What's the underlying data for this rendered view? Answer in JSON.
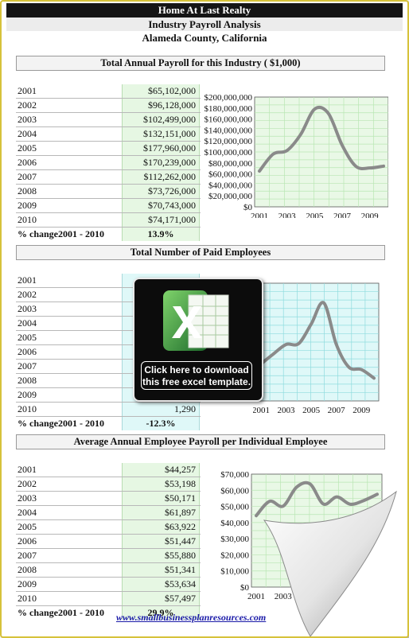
{
  "header": {
    "company": "Home At Last Realty",
    "report": "Industry Payroll Analysis",
    "location": "Alameda County, California"
  },
  "sections": [
    {
      "title": "Total Annual Payroll for this Industry ( $1,000)",
      "rows": [
        {
          "year": "2001",
          "value": "$65,102,000"
        },
        {
          "year": "2002",
          "value": "$96,128,000"
        },
        {
          "year": "2003",
          "value": "$102,499,000"
        },
        {
          "year": "2004",
          "value": "$132,151,000"
        },
        {
          "year": "2005",
          "value": "$177,960,000"
        },
        {
          "year": "2006",
          "value": "$170,239,000"
        },
        {
          "year": "2007",
          "value": "$112,262,000"
        },
        {
          "year": "2008",
          "value": "$73,726,000"
        },
        {
          "year": "2009",
          "value": "$70,743,000"
        },
        {
          "year": "2010",
          "value": "$74,171,000"
        }
      ],
      "pct_label": "% change2001 - 2010",
      "pct_value": "13.9%"
    },
    {
      "title": "Total Number of Paid Employees",
      "rows": [
        {
          "year": "2001",
          "value": ""
        },
        {
          "year": "2002",
          "value": ""
        },
        {
          "year": "2003",
          "value": ""
        },
        {
          "year": "2004",
          "value": ""
        },
        {
          "year": "2005",
          "value": ""
        },
        {
          "year": "2006",
          "value": ""
        },
        {
          "year": "2007",
          "value": ""
        },
        {
          "year": "2008",
          "value": ""
        },
        {
          "year": "2009",
          "value": ""
        },
        {
          "year": "2010",
          "value": "1,290"
        }
      ],
      "pct_label": "% change2001 - 2010",
      "pct_value": "-12.3%"
    },
    {
      "title": "Average Annual Employee Payroll per Individual Employee",
      "rows": [
        {
          "year": "2001",
          "value": "$44,257"
        },
        {
          "year": "2002",
          "value": "$53,198"
        },
        {
          "year": "2003",
          "value": "$50,171"
        },
        {
          "year": "2004",
          "value": "$61,897"
        },
        {
          "year": "2005",
          "value": "$63,922"
        },
        {
          "year": "2006",
          "value": "$51,447"
        },
        {
          "year": "2007",
          "value": "$55,880"
        },
        {
          "year": "2008",
          "value": "$51,341"
        },
        {
          "year": "2009",
          "value": "$53,634"
        },
        {
          "year": "2010",
          "value": "$57,497"
        }
      ],
      "pct_label": "% change2001 - 2010",
      "pct_value": "29.9%"
    }
  ],
  "popup": {
    "message_line1": "Click here to download",
    "message_line2": "this free excel template."
  },
  "footer": {
    "link": "www.smallbusinessplanresources.com"
  },
  "colors": {
    "green_cell": "#e6f7e3",
    "cyan_cell": "#dff8f8",
    "line": "#8a8a8a",
    "grid_green": "#b9e6b3",
    "grid_cyan": "#8fdcde"
  },
  "chart_data": [
    {
      "type": "line",
      "x": [
        2001,
        2002,
        2003,
        2004,
        2005,
        2006,
        2007,
        2008,
        2009,
        2010
      ],
      "values": [
        65102000,
        96128000,
        102499000,
        132151000,
        177960000,
        170239000,
        112262000,
        73726000,
        70743000,
        74171000
      ],
      "ylim": [
        0,
        200000000
      ],
      "yticks": [
        "$200,000,000",
        "$180,000,000",
        "$160,000,000",
        "$140,000,000",
        "$120,000,000",
        "$100,000,000",
        "$80,000,000",
        "$60,000,000",
        "$40,000,000",
        "$20,000,000",
        "$0"
      ],
      "xticks": [
        "2001",
        "2003",
        "2005",
        "2007",
        "2009"
      ],
      "grid": true
    },
    {
      "type": "line",
      "x": [
        2001,
        2002,
        2003,
        2004,
        2005,
        2006,
        2007,
        2008,
        2009,
        2010
      ],
      "values": [
        1471,
        1600,
        1720,
        1730,
        1980,
        2250,
        1720,
        1430,
        1400,
        1290
      ],
      "ylim": [
        1000,
        2500
      ],
      "xticks": [
        "2001",
        "2003",
        "2005",
        "2007",
        "2009"
      ],
      "grid": true
    },
    {
      "type": "line",
      "x": [
        2001,
        2002,
        2003,
        2004,
        2005,
        2006,
        2007,
        2008,
        2009,
        2010
      ],
      "values": [
        44257,
        53198,
        50171,
        61897,
        63922,
        51447,
        55880,
        51341,
        53634,
        57497
      ],
      "ylim": [
        0,
        70000
      ],
      "yticks": [
        "$70,000",
        "$60,000",
        "$50,000",
        "$40,000",
        "$30,000",
        "$20,000",
        "$10,000",
        "$0"
      ],
      "xticks": [
        "2001",
        "2003",
        "2005",
        "2007",
        "2009"
      ],
      "grid": true
    }
  ]
}
